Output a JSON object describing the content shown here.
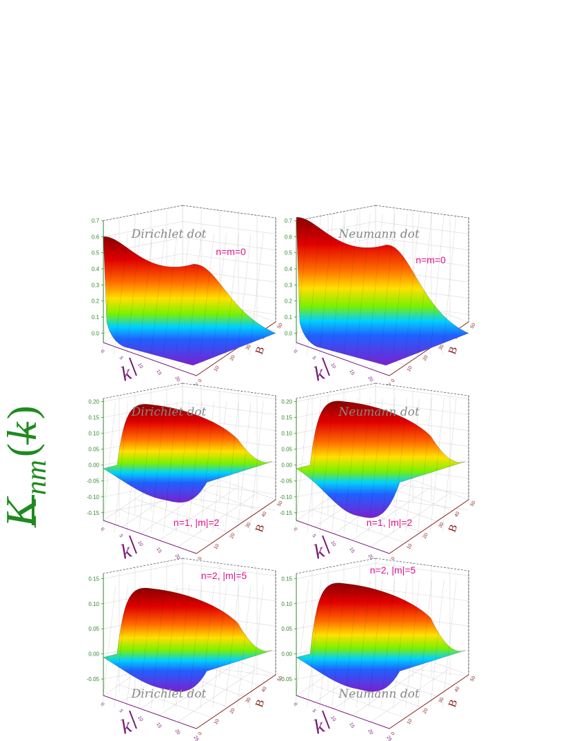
{
  "figure": {
    "ylabel_main": "K",
    "ylabel_sub": "nm",
    "ylabel_arg": "k"
  },
  "chart_data": [
    {
      "type": "surface3d",
      "title": "Dirichlet dot",
      "annotation": {
        "n": "0",
        "m": "0",
        "text": "n=m=0"
      },
      "z_ticks": [
        "0.0",
        "0.1",
        "0.2",
        "0.3",
        "0.4",
        "0.5",
        "0.6",
        "0.7"
      ],
      "zlim": [
        -0.05,
        0.7
      ],
      "k_ticks": [
        "0",
        "5",
        "10",
        "15",
        "20",
        "25"
      ],
      "B_ticks": [
        "0",
        "10",
        "20",
        "30",
        "40",
        "50"
      ],
      "xlabel": "k",
      "blabel": "B",
      "peak": 0.6,
      "ripples": 2
    },
    {
      "type": "surface3d",
      "title": "Neumann dot",
      "annotation": {
        "n": "0",
        "m": "0",
        "text": "n=m=0"
      },
      "z_ticks": [
        "0.0",
        "0.1",
        "0.2",
        "0.3",
        "0.4",
        "0.5",
        "0.6",
        "0.7"
      ],
      "zlim": [
        -0.05,
        0.7
      ],
      "k_ticks": [
        "0",
        "5",
        "10",
        "15",
        "20",
        "25"
      ],
      "B_ticks": [
        "0",
        "10",
        "20",
        "30",
        "40",
        "50"
      ],
      "xlabel": "k",
      "blabel": "B",
      "peak": 0.72,
      "ripples": 4
    },
    {
      "type": "surface3d",
      "title": "Dirichlet dot",
      "annotation": {
        "n": "1",
        "m": "2",
        "text": "n=1, |m|=2"
      },
      "z_ticks": [
        "-0.15",
        "-0.10",
        "-0.05",
        "0.00",
        "0.05",
        "0.10",
        "0.15",
        "0.20"
      ],
      "zlim": [
        -0.17,
        0.21
      ],
      "k_ticks": [
        "0",
        "5",
        "10",
        "15",
        "20",
        "25"
      ],
      "B_ticks": [
        "0",
        "10",
        "20",
        "30",
        "40",
        "50"
      ],
      "xlabel": "k",
      "blabel": "B",
      "peak": 0.19,
      "trough": -0.11
    },
    {
      "type": "surface3d",
      "title": "Neumann dot",
      "annotation": {
        "n": "1",
        "m": "2",
        "text": "n=1, |m|=2"
      },
      "z_ticks": [
        "-0.15",
        "-0.10",
        "-0.05",
        "0.00",
        "0.05",
        "0.10",
        "0.15",
        "0.20"
      ],
      "zlim": [
        -0.17,
        0.21
      ],
      "k_ticks": [
        "0",
        "5",
        "10",
        "15",
        "20",
        "25"
      ],
      "B_ticks": [
        "0",
        "10",
        "20",
        "30",
        "40",
        "50"
      ],
      "xlabel": "k",
      "blabel": "B",
      "peak": 0.2,
      "trough": -0.16
    },
    {
      "type": "surface3d",
      "title": "Dirichlet dot",
      "annotation": {
        "n": "2",
        "m": "5",
        "text": "n=2, |m|=5"
      },
      "z_ticks": [
        "-0.05",
        "0.00",
        "0.05",
        "0.10",
        "0.15"
      ],
      "zlim": [
        -0.08,
        0.16
      ],
      "k_ticks": [
        "0",
        "5",
        "10",
        "15",
        "20",
        "25"
      ],
      "B_ticks": [
        "0",
        "10",
        "20",
        "30",
        "40",
        "50"
      ],
      "xlabel": "k",
      "blabel": "B",
      "peak": 0.13,
      "trough": -0.07
    },
    {
      "type": "surface3d",
      "title": "Neumann dot",
      "annotation": {
        "n": "2",
        "m": "5",
        "text": "n=2, |m|=5"
      },
      "z_ticks": [
        "-0.05",
        "0.00",
        "0.05",
        "0.10",
        "0.15"
      ],
      "zlim": [
        -0.08,
        0.16
      ],
      "k_ticks": [
        "0",
        "5",
        "10",
        "15",
        "20",
        "25"
      ],
      "B_ticks": [
        "0",
        "10",
        "20",
        "30",
        "40",
        "50"
      ],
      "xlabel": "k",
      "blabel": "B",
      "peak": 0.14,
      "trough": -0.07
    }
  ]
}
